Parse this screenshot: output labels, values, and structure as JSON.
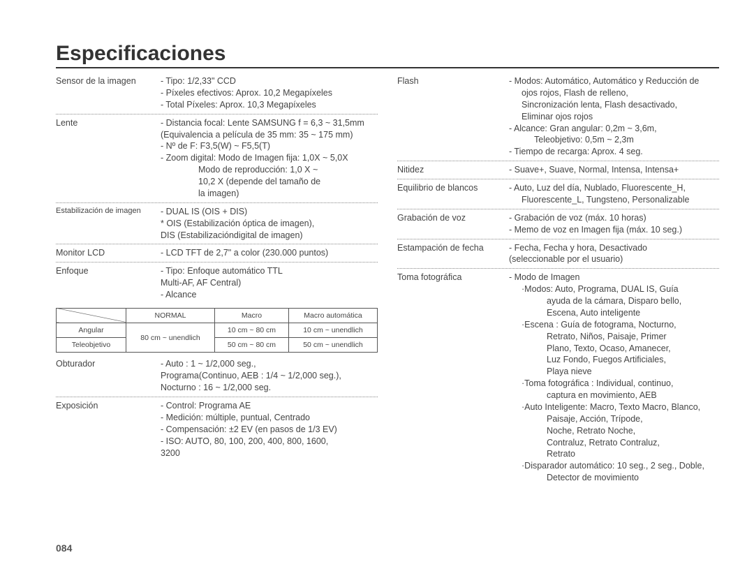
{
  "title": "Especificaciones",
  "pagenum": "084",
  "left": {
    "sensor": {
      "label": "Sensor de la imagen",
      "l1": "- Tipo: 1/2,33\" CCD",
      "l2": "- Píxeles efectivos: Aprox. 10,2 Megapíxeles",
      "l3": "- Total Píxeles: Aprox. 10,3 Megapíxeles"
    },
    "lente": {
      "label": "Lente",
      "l1": "- Distancia focal: Lente SAMSUNG f = 6,3 ~ 31,5mm",
      "l2": "  (Equivalencia a película de 35 mm: 35 ~ 175 mm)",
      "l3": "- Nº de F: F3,5(W) ~ F5,5(T)",
      "l4": "- Zoom digital: Modo de Imagen fija: 1,0X ~ 5,0X",
      "l5": "Modo de reproducción: 1,0 X ~",
      "l6": "10,2 X (depende del tamaño de",
      "l7": "la imagen)"
    },
    "estab": {
      "label": "Estabilización de imagen",
      "l1": "- DUAL IS (OIS + DIS)",
      "l2": "* OIS (Estabilización óptica de imagen),",
      "l3": "  DIS (Estabilizacióndigital de imagen)"
    },
    "monitor": {
      "label": "Monitor LCD",
      "l1": "- LCD TFT de 2,7\" a color (230.000 puntos)"
    },
    "enfoque": {
      "label": "Enfoque",
      "l1": "- Tipo: Enfoque automático TTL",
      "l2": "  Multi-AF, AF Central)",
      "l3": "- Alcance"
    },
    "table": {
      "cols": [
        "NORMAL",
        "Macro",
        "Macro automática"
      ],
      "rows": [
        {
          "head": "Angular",
          "cells": [
            "",
            "10 cm ~ 80 cm",
            "10 cm ~ unendlich"
          ]
        },
        {
          "head": "Teleobjetivo",
          "cells": [
            "",
            "50 cm ~ 80 cm",
            "50 cm ~ unendlich"
          ]
        }
      ],
      "merged_first": "80 cm ~ unendlich"
    },
    "obturador": {
      "label": "Obturador",
      "l1": "- Auto : 1 ~ 1/2,000 seg.,",
      "l2": "  Programa(Continuo, AEB : 1/4 ~ 1/2,000 seg.),",
      "l3": "  Nocturno : 16 ~ 1/2,000 seg."
    },
    "exposicion": {
      "label": "Exposición",
      "l1": "- Control: Programa AE",
      "l2": "- Medición: múltiple, puntual, Centrado",
      "l3": "- Compensación: ±2 EV (en pasos de 1/3 EV)",
      "l4": "- ISO: AUTO, 80, 100, 200, 400, 800, 1600,",
      "l5": "  3200"
    }
  },
  "right": {
    "flash": {
      "label": "Flash",
      "l1": "- Modos: Automático, Automático y Reducción de",
      "l2": "  ojos rojos, Flash de relleno,",
      "l3": "  Sincronización lenta, Flash desactivado,",
      "l4": "  Eliminar ojos rojos",
      "l5": "- Alcance: Gran angular: 0,2m ~ 3,6m,",
      "l6": "  Teleobjetivo:  0,5m ~ 2,3m",
      "l7": "- Tiempo de recarga: Aprox. 4 seg."
    },
    "nitidez": {
      "label": "Nitidez",
      "l1": "- Suave+, Suave, Normal, Intensa, Intensa+"
    },
    "blancos": {
      "label": "Equilibrio de blancos",
      "l1": "- Auto, Luz del día, Nublado, Fluorescente_H,",
      "l2": "  Fluorescente_L, Tungsteno, Personalizable"
    },
    "voz": {
      "label": "Grabación de voz",
      "l1": "- Grabación de voz (máx. 10 horas)",
      "l2": "- Memo de voz en Imagen fija (máx. 10 seg.)"
    },
    "fecha": {
      "label": "Estampación de fecha",
      "l1": "- Fecha, Fecha y hora, Desactivado",
      "l2": "  (seleccionable por el usuario)"
    },
    "toma": {
      "label": "Toma fotográfica",
      "l1": "- Modo de Imagen",
      "l2": "·Modos: Auto, Programa, DUAL IS, Guía",
      "l3": "ayuda de la cámara, Disparo bello,",
      "l4": "Escena, Auto inteligente",
      "l5": "·Escena : Guía de fotograma, Nocturno,",
      "l6": "Retrato, Niños, Paisaje, Primer",
      "l7": "Plano, Texto, Ocaso, Amanecer,",
      "l8": "Luz Fondo, Fuegos Artificiales,",
      "l9": "Playa nieve",
      "l10": "·Toma fotográfica : Individual, continuo,",
      "l11": "captura en movimiento, AEB",
      "l12": "·Auto Inteligente: Macro, Texto Macro, Blanco,",
      "l13": "Paisaje, Acción, Trípode,",
      "l14": "Noche, Retrato Noche,",
      "l15": "Contraluz, Retrato Contraluz,",
      "l16": "Retrato",
      "l17": "·Disparador automático: 10 seg., 2 seg., Doble,",
      "l18": "Detector de movimiento"
    }
  }
}
